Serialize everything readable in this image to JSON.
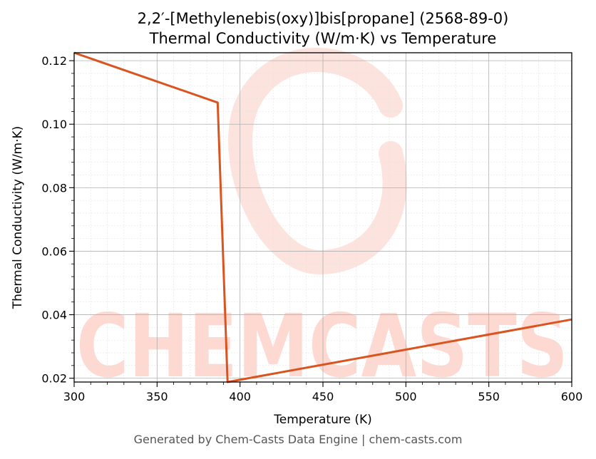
{
  "chart_data": {
    "type": "line",
    "title": "2,2′-[Methylenebis(oxy)]bis[propane] (2568-89-0)",
    "subtitle": "Thermal Conductivity (W/m·K) vs Temperature",
    "xlabel": "Temperature (K)",
    "ylabel": "Thermal Conductivity (W/m·K)",
    "xlim": [
      300,
      600
    ],
    "ylim": [
      0.0188,
      0.1225
    ],
    "xticks": [
      300,
      350,
      400,
      450,
      500,
      550,
      600
    ],
    "yticks": [
      0.02,
      0.04,
      0.06,
      0.08,
      0.1,
      0.12
    ],
    "ytick_labels": [
      "0.02",
      "0.04",
      "0.06",
      "0.08",
      "0.10",
      "0.12"
    ],
    "grid": true,
    "series": [
      {
        "color": "#d9541e",
        "x": [
          300,
          386.5,
          392.5,
          600
        ],
        "y": [
          0.1225,
          0.1068,
          0.0188,
          0.0385
        ]
      }
    ]
  },
  "watermark": "CHEMCASTS",
  "watermark_color": "#fdd9d2",
  "footer": "Generated by Chem-Casts Data Engine | chem-casts.com"
}
